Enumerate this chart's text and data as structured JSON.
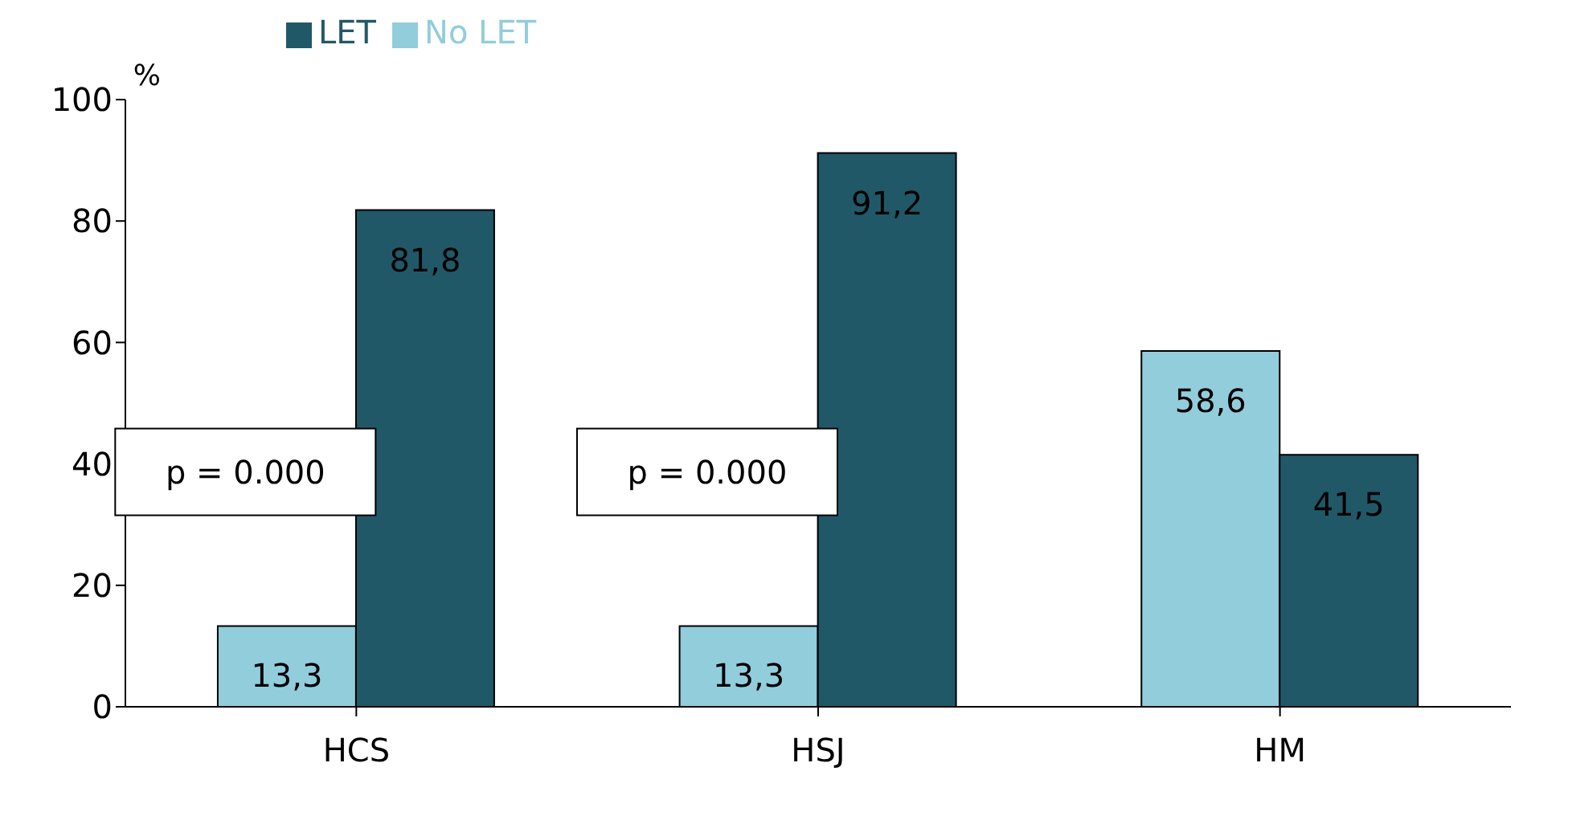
{
  "chart_data": {
    "type": "bar",
    "ylabel": "%",
    "categories": [
      "HCS",
      "HSJ",
      "HM"
    ],
    "series": [
      {
        "name": "No LET",
        "color": "#92cddc",
        "values": [
          13.3,
          13.3,
          58.6
        ],
        "value_labels": [
          "13,3",
          "13,3",
          "58,6"
        ]
      },
      {
        "name": "LET",
        "color": "#215868",
        "values": [
          81.8,
          91.2,
          41.5
        ],
        "value_labels": [
          "81,8",
          "91,2",
          "41,5"
        ]
      }
    ],
    "ylim": [
      0,
      100
    ],
    "yticks": [
      0,
      20,
      40,
      60,
      80,
      100
    ],
    "grid": false,
    "legend": "top left",
    "annotations": [
      {
        "text": "p = 0.000",
        "x": "HCS",
        "y": 40
      },
      {
        "text": "p = 0.000",
        "x": "HSJ",
        "y": 40
      }
    ]
  }
}
